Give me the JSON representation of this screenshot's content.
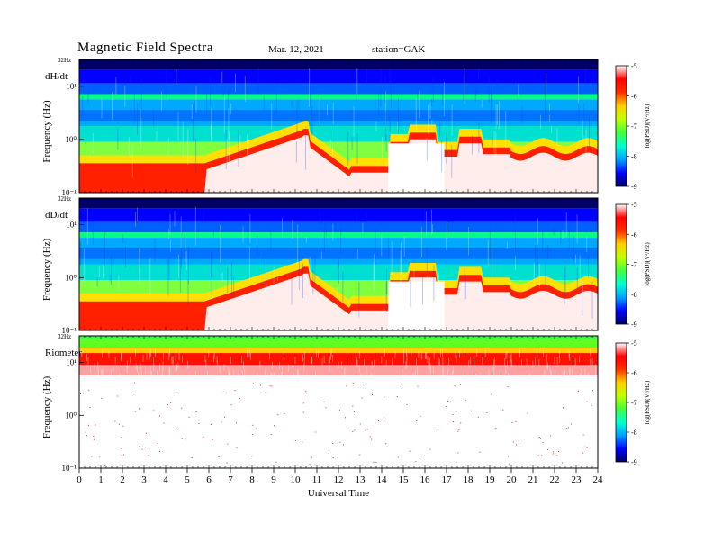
{
  "header": {
    "title": "Magnetic  Field  Spectra",
    "date": "Mar. 12, 2021",
    "station": "station=GAK"
  },
  "colors": {
    "colormap": [
      "#000066",
      "#0000ff",
      "#00a0ff",
      "#00ffd0",
      "#40ff40",
      "#c0ff00",
      "#ffd000",
      "#ff3000",
      "#ff0000",
      "#ffffff"
    ]
  },
  "chart_data": [
    {
      "type": "heatmap",
      "panel_label": "dH/dt",
      "ylabel": "Frequency  (Hz)",
      "yticks": [
        "10⁻¹",
        "10⁰",
        "10¹"
      ],
      "ytop_label": "32Hz",
      "x_range": [
        0,
        24
      ],
      "y_scale": "log",
      "y_range_hz": [
        0.1,
        32
      ],
      "colorbar": {
        "label": "log(PSD)(V²/Hz)",
        "ticks": [
          "-5",
          "-6",
          "-7",
          "-8",
          "-9"
        ],
        "range": [
          -9,
          -5
        ]
      }
    },
    {
      "type": "heatmap",
      "panel_label": "dD/dt",
      "ylabel": "Frequency  (Hz)",
      "yticks": [
        "10⁻¹",
        "10⁰",
        "10¹"
      ],
      "ytop_label": "32Hz",
      "x_range": [
        0,
        24
      ],
      "y_scale": "log",
      "y_range_hz": [
        0.1,
        32
      ],
      "colorbar": {
        "label": "log(PSD)(V²/Hz)",
        "ticks": [
          "-5",
          "-6",
          "-7",
          "-8",
          "-9"
        ],
        "range": [
          -9,
          -5
        ]
      }
    },
    {
      "type": "heatmap",
      "panel_label": "Riometer",
      "ylabel": "Frequency  (Hz)",
      "yticks": [
        "10⁻¹",
        "10⁰",
        "10¹"
      ],
      "ytop_label": "32Hz",
      "x_range": [
        0,
        24
      ],
      "y_scale": "log",
      "y_range_hz": [
        0.1,
        32
      ],
      "colorbar": {
        "label": "log(PSD)(V²/Hz)",
        "ticks": [
          "-5",
          "-6",
          "-7",
          "-8",
          "-9"
        ],
        "range": [
          -9,
          -5
        ]
      }
    }
  ],
  "xaxis": {
    "label": "Universal  Time",
    "ticks": [
      "0",
      "1",
      "2",
      "3",
      "4",
      "5",
      "6",
      "7",
      "8",
      "9",
      "10",
      "11",
      "12",
      "13",
      "14",
      "15",
      "16",
      "17",
      "18",
      "19",
      "20",
      "21",
      "22",
      "23",
      "24"
    ]
  }
}
